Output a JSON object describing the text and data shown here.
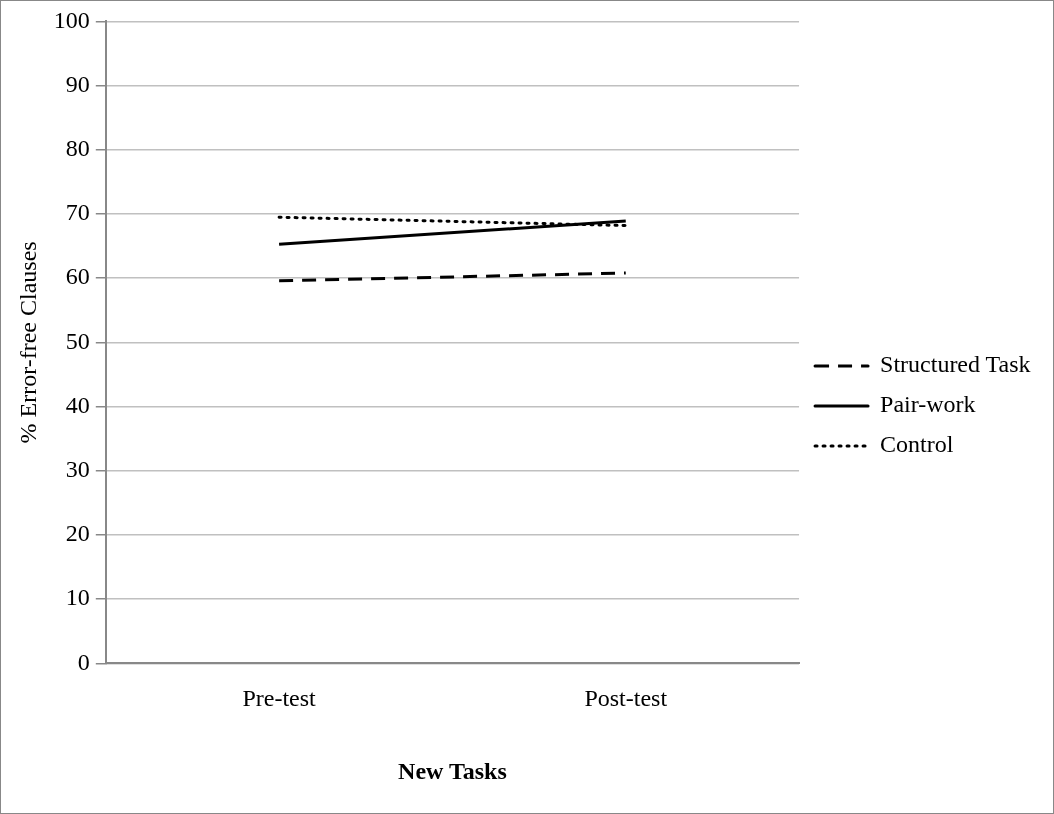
{
  "chart_data": {
    "type": "line",
    "xlabel": "New Tasks",
    "ylabel": "% Error-free Clauses",
    "categories": [
      "Pre-test",
      "Post-test"
    ],
    "series": [
      {
        "name": "Structured Task",
        "color": "#000000",
        "line_style": "dashed",
        "values": [
          59.6,
          60.8
        ]
      },
      {
        "name": "Pair-work",
        "color": "#000000",
        "line_style": "solid",
        "values": [
          65.3,
          68.9
        ]
      },
      {
        "name": "Control",
        "color": "#000000",
        "line_style": "dotted",
        "values": [
          69.5,
          68.2
        ]
      }
    ],
    "ylim": [
      0,
      100
    ],
    "yticks": [
      0,
      10,
      20,
      30,
      40,
      50,
      60,
      70,
      80,
      90,
      100
    ],
    "grid": "y",
    "legend": "right",
    "marker": "none"
  }
}
